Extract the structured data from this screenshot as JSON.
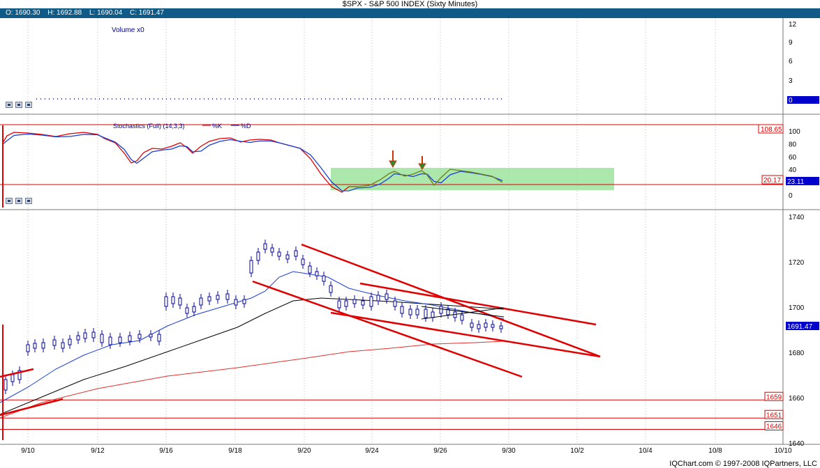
{
  "title": "$SPX - S&P 500 INDEX (Sixty Minutes)",
  "ohlc": {
    "open": "O: 1690.30",
    "high": "H: 1692.88",
    "low": "L: 1690.04",
    "close": "C: 1691.47"
  },
  "footer": "IQChart.com © 1997-2008 IQPartners, LLC",
  "colors": {
    "red": "#e00000",
    "blue": "#0000cc",
    "black": "#000000",
    "green_zone": "#90e090",
    "header": "#0f5a87"
  },
  "volume_panel": {
    "label": "Volume x0",
    "y_ticks": [
      "12",
      "9",
      "6",
      "3"
    ],
    "last_value": "0"
  },
  "stoch_panel": {
    "label": "Stochastics (Full) (14,3,3)",
    "legend": [
      {
        "name": "%K",
        "color": "#e00000"
      },
      {
        "name": "%D",
        "color": "#0000cc"
      }
    ],
    "y_ticks": [
      "100",
      "80",
      "60",
      "40",
      "20",
      "0"
    ],
    "level_high": "108.65",
    "level_low": "20.17",
    "last_value": "23.11"
  },
  "price_panel": {
    "y_ticks": [
      "1740",
      "1720",
      "1700",
      "1680",
      "1660",
      "1640"
    ],
    "last_price": "1691.47",
    "levels": [
      "1659",
      "1651",
      "1646"
    ]
  },
  "x_labels": [
    "9/10",
    "9/12",
    "9/16",
    "9/18",
    "9/20",
    "9/24",
    "9/26",
    "9/30",
    "10/2",
    "10/4",
    "10/8",
    "10/10"
  ],
  "chart_data": {
    "type": "candlestick",
    "ylim": [
      1640,
      1742
    ],
    "series": [
      {
        "name": "price",
        "values": [
          1690.3,
          1692.88,
          1690.04,
          1691.47
        ]
      }
    ],
    "horizontal_levels": [
      1659,
      1651,
      1646
    ]
  }
}
